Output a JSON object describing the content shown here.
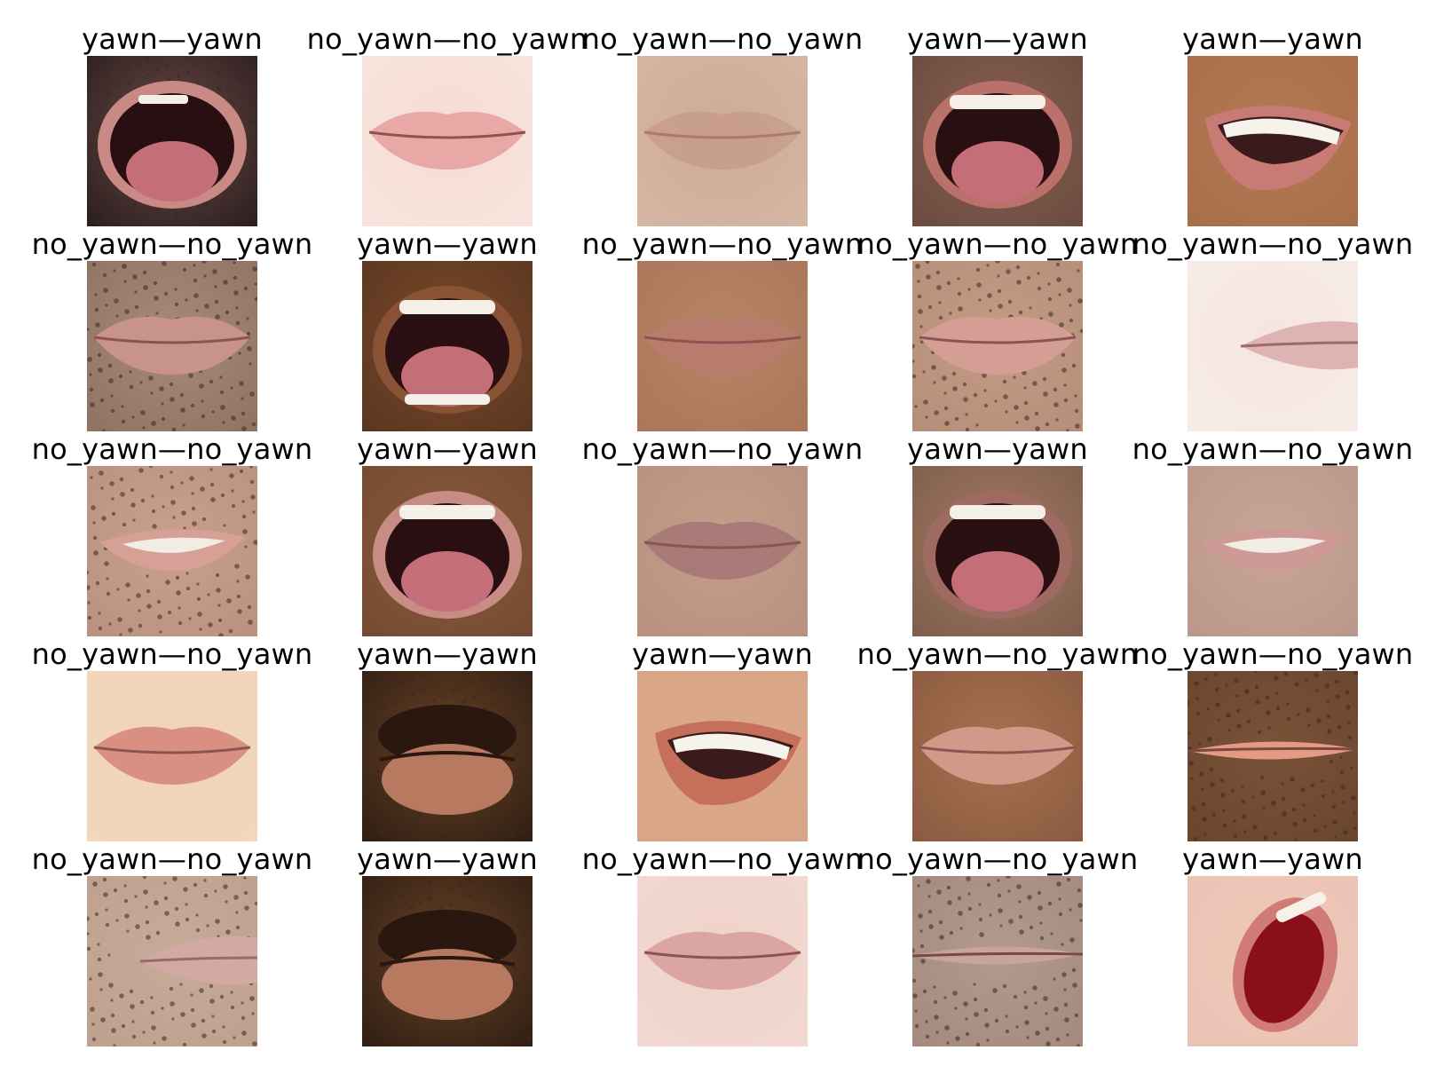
{
  "figure": {
    "columns": 5,
    "rows": 5
  },
  "cells": [
    {
      "label": "yawn—yawn",
      "mouth": "yawn-wide",
      "skin": "#6b4a45",
      "bg": "#2a1d1e",
      "lip": "#c98a86",
      "beard": true
    },
    {
      "label": "no_yawn—no_yawn",
      "mouth": "closed",
      "skin": "#f6dcd4",
      "bg": "#f8e5de",
      "lip": "#e8a9a6",
      "beard": false
    },
    {
      "label": "no_yawn—no_yawn",
      "mouth": "closed-faint",
      "skin": "#cfaa98",
      "bg": "#d6b6a4",
      "lip": "#bf8f82",
      "beard": false
    },
    {
      "label": "yawn—yawn",
      "mouth": "yawn-tongue",
      "skin": "#8a6152",
      "bg": "#6a4a3f",
      "lip": "#b9716a",
      "beard": false
    },
    {
      "label": "yawn—yawn",
      "mouth": "smile-teeth",
      "skin": "#b37a56",
      "bg": "#a86d49",
      "lip": "#c77b74",
      "beard": false
    },
    {
      "label": "no_yawn—no_yawn",
      "mouth": "closed",
      "skin": "#a98a79",
      "bg": "#8d7263",
      "lip": "#c8938a",
      "beard": true
    },
    {
      "label": "yawn—yawn",
      "mouth": "yawn-open",
      "skin": "#7a4a2a",
      "bg": "#5a3520",
      "lip": "#8a5234",
      "beard": false
    },
    {
      "label": "no_yawn—no_yawn",
      "mouth": "closed",
      "skin": "#b78466",
      "bg": "#a9765a",
      "lip": "#b87c6c",
      "beard": false
    },
    {
      "label": "no_yawn—no_yawn",
      "mouth": "closed",
      "skin": "#c49c86",
      "bg": "#b58d78",
      "lip": "#d59e95",
      "beard": true
    },
    {
      "label": "no_yawn—no_yawn",
      "mouth": "closed-side",
      "skin": "#f5e6df",
      "bg": "#f7ece6",
      "lip": "#ddb3b4",
      "beard": false
    },
    {
      "label": "no_yawn—no_yawn",
      "mouth": "smile-slight",
      "skin": "#c9a08c",
      "bg": "#b9917e",
      "lip": "#d7a097",
      "beard": true
    },
    {
      "label": "yawn—yawn",
      "mouth": "yawn-teeth",
      "skin": "#8a5a3c",
      "bg": "#734a31",
      "lip": "#c98c85",
      "beard": false
    },
    {
      "label": "no_yawn—no_yawn",
      "mouth": "closed",
      "skin": "#c59d8b",
      "bg": "#b8907e",
      "lip": "#a87a78",
      "beard": false
    },
    {
      "label": "yawn—yawn",
      "mouth": "yawn-teeth",
      "skin": "#a17862",
      "bg": "#7e5d4c",
      "lip": "#9e6a62",
      "beard": false
    },
    {
      "label": "no_yawn—no_yawn",
      "mouth": "smile-slight",
      "skin": "#c8a596",
      "bg": "#b9978a",
      "lip": "#cf9a95",
      "beard": false
    },
    {
      "label": "no_yawn—no_yawn",
      "mouth": "closed",
      "skin": "#f0d3b8",
      "bg": "#f2d7bd",
      "lip": "#d98f82",
      "beard": false
    },
    {
      "label": "yawn—yawn",
      "mouth": "closed-thick",
      "skin": "#6a4326",
      "bg": "#2e1d12",
      "lip": "#b77a60",
      "beard": true
    },
    {
      "label": "yawn—yawn",
      "mouth": "smile-teeth",
      "skin": "#dba98a",
      "bg": "#d8a585",
      "lip": "#c6705c",
      "beard": false
    },
    {
      "label": "no_yawn—no_yawn",
      "mouth": "closed",
      "skin": "#a87152",
      "bg": "#8a5a3f",
      "lip": "#cf9a88",
      "beard": false
    },
    {
      "label": "no_yawn—no_yawn",
      "mouth": "closed-thin",
      "skin": "#7a5238",
      "bg": "#6a452e",
      "lip": "#e59a86",
      "beard": true
    },
    {
      "label": "no_yawn—no_yawn",
      "mouth": "closed-side",
      "skin": "#c8aa99",
      "bg": "#bfa08f",
      "lip": "#d3a9a3",
      "beard": true
    },
    {
      "label": "yawn—yawn",
      "mouth": "closed-thick",
      "skin": "#6a4326",
      "bg": "#2e1d12",
      "lip": "#b77a60",
      "beard": true
    },
    {
      "label": "no_yawn—no_yawn",
      "mouth": "closed",
      "skin": "#efd3cb",
      "bg": "#f1d8d1",
      "lip": "#dba5a2",
      "beard": false
    },
    {
      "label": "no_yawn—no_yawn",
      "mouth": "closed-thin",
      "skin": "#b29a8c",
      "bg": "#a38a7c",
      "lip": "#c9a49a",
      "beard": true
    },
    {
      "label": "yawn—yawn",
      "mouth": "yawn-side",
      "skin": "#f0c8b8",
      "bg": "#e9c3b4",
      "lip": "#d07b76",
      "beard": false
    }
  ]
}
